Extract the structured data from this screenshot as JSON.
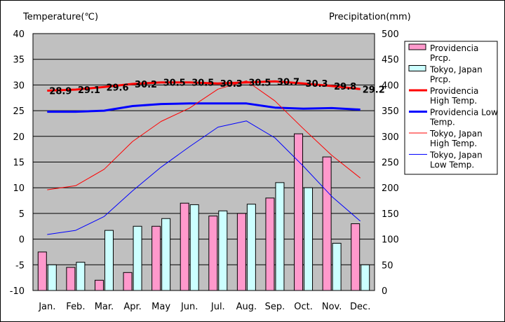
{
  "chart_data": {
    "type": "bar",
    "left_axis_title": "Temperature(℃)",
    "right_axis_title": "Precipitation(mm)",
    "categories": [
      "Jan.",
      "Feb.",
      "Mar.",
      "Apr.",
      "May",
      "Jun.",
      "Jul.",
      "Aug.",
      "Sep.",
      "Oct.",
      "Nov.",
      "Dec."
    ],
    "temp_ylim": [
      -10,
      40
    ],
    "temp_ticks": [
      "-10",
      "-5",
      "0",
      "5",
      "10",
      "15",
      "20",
      "25",
      "30",
      "35",
      "40"
    ],
    "precip_ylim": [
      0,
      500
    ],
    "precip_ticks": [
      "0",
      "50",
      "100",
      "150",
      "200",
      "250",
      "300",
      "350",
      "400",
      "450",
      "500"
    ],
    "grid": true,
    "plot_background": "#c0c0c0",
    "legend_position": "right",
    "bar_series": [
      {
        "name": "Providencia Prcp.",
        "color": "#ff99cc",
        "values": [
          75,
          45,
          20,
          35,
          125,
          170,
          145,
          150,
          180,
          305,
          260,
          130
        ]
      },
      {
        "name": "Tokyo, Japan Prcp.",
        "color": "#ccffff",
        "values": [
          50,
          55,
          117,
          125,
          140,
          167,
          155,
          168,
          210,
          200,
          92,
          50
        ]
      }
    ],
    "line_series": [
      {
        "name": "Providencia High Temp.",
        "color": "#ff0000",
        "width": 3,
        "values": [
          28.9,
          29.1,
          29.6,
          30.2,
          30.5,
          30.5,
          30.3,
          30.5,
          30.7,
          30.3,
          29.8,
          29.2
        ],
        "labels": [
          "28.9",
          "29.1",
          "29.6",
          "30.2",
          "30.5",
          "30.5",
          "30.3",
          "30.5",
          "30.7",
          "30.3",
          "29.8",
          "29.2"
        ]
      },
      {
        "name": "Providencia Low Temp.",
        "color": "#0000ff",
        "width": 3,
        "values": [
          24.8,
          24.8,
          25.0,
          25.9,
          26.3,
          26.4,
          26.4,
          26.4,
          25.6,
          25.4,
          25.5,
          25.2
        ]
      },
      {
        "name": "Tokyo, Japan High Temp.",
        "color": "#ff0000",
        "width": 1,
        "values": [
          9.6,
          10.4,
          13.6,
          19.0,
          22.9,
          25.5,
          29.2,
          30.8,
          26.9,
          21.5,
          16.3,
          11.9
        ]
      },
      {
        "name": "Tokyo, Japan Low Temp.",
        "color": "#0000ff",
        "width": 1,
        "values": [
          0.9,
          1.7,
          4.4,
          9.4,
          14.0,
          18.0,
          21.8,
          23.0,
          19.7,
          14.2,
          8.3,
          3.5
        ]
      }
    ],
    "legend": [
      {
        "type": "bar",
        "color": "#ff99cc",
        "lines": [
          "Providencia",
          "Prcp."
        ]
      },
      {
        "type": "bar",
        "color": "#ccffff",
        "lines": [
          "Tokyo, Japan",
          "Prcp."
        ]
      },
      {
        "type": "line",
        "color": "#ff0000",
        "width": 3,
        "lines": [
          "Providencia",
          "High Temp."
        ]
      },
      {
        "type": "line",
        "color": "#0000ff",
        "width": 3,
        "lines": [
          "Providencia Low",
          "Temp."
        ]
      },
      {
        "type": "line",
        "color": "#ff0000",
        "width": 1,
        "lines": [
          "Tokyo, Japan",
          "High Temp."
        ]
      },
      {
        "type": "line",
        "color": "#0000ff",
        "width": 1,
        "lines": [
          "Tokyo, Japan",
          "Low Temp."
        ]
      }
    ]
  }
}
